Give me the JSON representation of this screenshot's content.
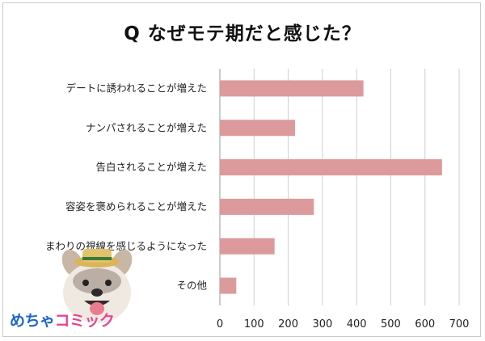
{
  "title": "Q なぜモテ期だと感じた？",
  "chart_data": {
    "type": "bar",
    "orientation": "horizontal",
    "title": "Q なぜモテ期だと感じた？",
    "categories": [
      "デートに誘われることが増えた",
      "ナンパされることが増えた",
      "告白されることが増えた",
      "容姿を褒められることが増えた",
      "まわりの視線を感じるようになった",
      "その他"
    ],
    "values": [
      420,
      220,
      650,
      275,
      160,
      48
    ],
    "xlim": [
      0,
      700
    ],
    "xticks": [
      "0",
      "100",
      "200",
      "300",
      "400",
      "500",
      "600",
      "700"
    ],
    "grid": true,
    "bar_color": "#dd9a9c"
  },
  "logo": {
    "part1": "めちゃ",
    "part2": "コミック"
  }
}
